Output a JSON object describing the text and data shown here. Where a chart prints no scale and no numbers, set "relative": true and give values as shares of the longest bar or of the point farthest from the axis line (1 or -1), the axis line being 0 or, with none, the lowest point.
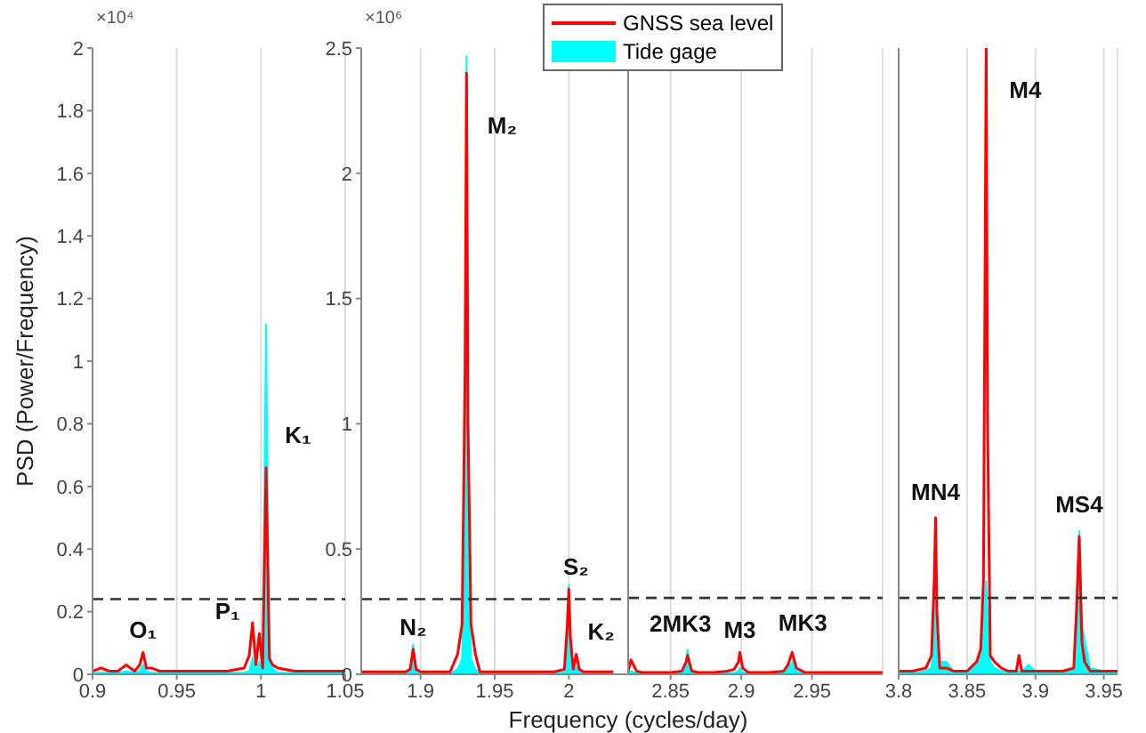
{
  "chart_data": [
    {
      "type": "line",
      "ylabel": "PSD (Power/Frequency)",
      "annotations": [
        "×10⁴",
        {
          "text": "O₁",
          "x": 0.93,
          "y": 0.07
        },
        {
          "text": "P₁",
          "x": 0.995,
          "y": 0.165
        },
        {
          "text": "K₁",
          "x": 1.003,
          "y": 0.66
        }
      ],
      "x": [
        0.9,
        0.905,
        0.91,
        0.915,
        0.92,
        0.925,
        0.928,
        0.93,
        0.932,
        0.935,
        0.94,
        0.95,
        0.96,
        0.97,
        0.98,
        0.99,
        0.993,
        0.995,
        0.997,
        0.999,
        1.001,
        1.003,
        1.005,
        1.007,
        1.01,
        1.02,
        1.03,
        1.04,
        1.05
      ],
      "series": [
        {
          "type": "line",
          "color": "#ff0000",
          "values": [
            0.01,
            0.02,
            0.01,
            0.01,
            0.03,
            0.01,
            0.03,
            0.07,
            0.02,
            0.02,
            0.01,
            0.01,
            0.01,
            0.01,
            0.01,
            0.02,
            0.06,
            0.165,
            0.03,
            0.13,
            0.02,
            0.66,
            0.05,
            0.03,
            0.02,
            0.01,
            0.01,
            0.01,
            0.01
          ]
        },
        {
          "type": "area",
          "color": "#00ffff",
          "values": [
            0.005,
            0.005,
            0.005,
            0.005,
            0.01,
            0.005,
            0.01,
            0.03,
            0.01,
            0.005,
            0.005,
            0.005,
            0.005,
            0.005,
            0.005,
            0.005,
            0.01,
            0.05,
            0.01,
            0.04,
            0.02,
            1.12,
            0.06,
            0.02,
            0.005,
            0.005,
            0.005,
            0.005,
            0.005
          ]
        }
      ],
      "xlim": [
        0.9,
        1.05
      ],
      "xticks": [
        0.9,
        0.95,
        1,
        1.05
      ],
      "ylim": [
        0,
        2
      ],
      "yticks": [
        0,
        0.2,
        0.4,
        0.6,
        0.8,
        1,
        1.2,
        1.4,
        1.6,
        1.8,
        2
      ],
      "grid": "x",
      "ref_lines": [
        {
          "axis": "y",
          "value": 0.24,
          "color": "#333333",
          "line_style": "dashed"
        }
      ]
    },
    {
      "type": "line",
      "xlabel": "Frequency (cycles/day)",
      "annotations": [
        "×10⁶",
        {
          "text": "M₂",
          "x": 1.931,
          "y": 2.4
        },
        {
          "text": "N₂",
          "x": 1.895,
          "y": 0.1
        },
        {
          "text": "S₂",
          "x": 2.0,
          "y": 0.34
        },
        {
          "text": "K₂",
          "x": 2.005,
          "y": 0.08
        }
      ],
      "x": [
        1.86,
        1.87,
        1.88,
        1.89,
        1.893,
        1.895,
        1.897,
        1.9,
        1.91,
        1.92,
        1.925,
        1.928,
        1.93,
        1.931,
        1.932,
        1.934,
        1.937,
        1.94,
        1.95,
        1.96,
        1.97,
        1.98,
        1.99,
        1.997,
        1.999,
        2.0,
        2.001,
        2.003,
        2.005,
        2.007,
        2.01,
        2.02,
        2.03
      ],
      "series": [
        {
          "type": "line",
          "color": "#ff0000",
          "values": [
            0.01,
            0.01,
            0.01,
            0.01,
            0.02,
            0.1,
            0.02,
            0.01,
            0.01,
            0.01,
            0.08,
            0.2,
            1.2,
            2.4,
            1.0,
            0.2,
            0.08,
            0.01,
            0.01,
            0.01,
            0.01,
            0.01,
            0.01,
            0.02,
            0.2,
            0.34,
            0.15,
            0.02,
            0.08,
            0.02,
            0.01,
            0.01,
            0.01
          ]
        },
        {
          "type": "area",
          "color": "#00ffff",
          "values": [
            0.005,
            0.005,
            0.005,
            0.005,
            0.01,
            0.12,
            0.01,
            0.005,
            0.005,
            0.005,
            0.02,
            0.06,
            0.8,
            2.47,
            0.9,
            0.06,
            0.02,
            0.005,
            0.005,
            0.005,
            0.005,
            0.005,
            0.005,
            0.01,
            0.15,
            0.36,
            0.1,
            0.01,
            0.03,
            0.01,
            0.005,
            0.005,
            0.005
          ]
        }
      ],
      "xlim": [
        1.86,
        2.04
      ],
      "xticks": [
        1.9,
        1.95,
        2
      ],
      "ylim": [
        0,
        2.5
      ],
      "yticks": [
        0,
        0.5,
        1,
        1.5,
        2,
        2.5
      ],
      "grid": "x",
      "ref_lines": [
        {
          "axis": "y",
          "value": 0.3,
          "color": "#333333",
          "line_style": "dashed"
        }
      ]
    },
    {
      "type": "line",
      "relative": true,
      "tick_labels": "x",
      "legend": "top left",
      "annotations": [
        {
          "text": "2MK3",
          "x": 2.862,
          "y": 1
        },
        {
          "text": "M3",
          "x": 2.899,
          "y": 0.875
        },
        {
          "text": "MK3",
          "x": 2.936,
          "y": 0.875
        }
      ],
      "x": [
        2.82,
        2.822,
        2.826,
        2.83,
        2.84,
        2.85,
        2.858,
        2.861,
        2.862,
        2.865,
        2.87,
        2.88,
        2.89,
        2.895,
        2.898,
        2.899,
        2.901,
        2.905,
        2.91,
        2.92,
        2.93,
        2.933,
        2.936,
        2.939,
        2.945,
        2.96,
        2.97,
        2.98,
        2.99,
        3.0
      ],
      "series": [
        {
          "name": "GNSS sea level",
          "type": "line",
          "color": "#ff0000",
          "values": [
            0.125,
            0.575,
            0.125,
            0.075,
            0.075,
            0.075,
            0.125,
            0.5,
            0.75,
            0.125,
            0.075,
            0.075,
            0.125,
            0.2,
            0.5,
            0.875,
            0.25,
            0.075,
            0.075,
            0.075,
            0.125,
            0.375,
            0.875,
            0.25,
            0.075,
            0.075,
            0.075,
            0.075,
            0.075,
            0.075
          ]
        },
        {
          "name": "Tide gage",
          "type": "area",
          "color": "#00ffff",
          "values": [
            0.05,
            0.125,
            0.05,
            0.05,
            0.05,
            0.05,
            0.075,
            0.5,
            1,
            0.075,
            0.05,
            0.05,
            0.05,
            0.05,
            0.125,
            0.25,
            0.075,
            0.05,
            0.05,
            0.05,
            0.075,
            0.25,
            0.5,
            0.125,
            0.05,
            0.05,
            0.05,
            0.05,
            0.05,
            0.05
          ]
        }
      ],
      "xlim": [
        2.82,
        3.0
      ],
      "xticks": [
        2.85,
        2.9,
        2.95
      ],
      "grid": "x",
      "ref_lines": [
        {
          "axis": "y",
          "value": 3.05,
          "color": "#333333",
          "line_style": "dashed"
        }
      ]
    },
    {
      "type": "line",
      "relative": true,
      "tick_labels": "x",
      "annotations": [
        {
          "text": "M4",
          "x": 3.864,
          "y": 1.0
        },
        {
          "text": "MN4",
          "x": 3.827,
          "y": 0.25
        },
        {
          "text": "MS4",
          "x": 3.932,
          "y": 0.23
        }
      ],
      "x": [
        3.8,
        3.81,
        3.82,
        3.824,
        3.826,
        3.827,
        3.828,
        3.83,
        3.835,
        3.84,
        3.85,
        3.857,
        3.86,
        3.862,
        3.864,
        3.865,
        3.867,
        3.87,
        3.875,
        3.88,
        3.886,
        3.888,
        3.89,
        3.895,
        3.9,
        3.91,
        3.92,
        3.928,
        3.93,
        3.932,
        3.934,
        3.936,
        3.94,
        3.95,
        3.96
      ],
      "series": [
        {
          "type": "line",
          "color": "#ff0000",
          "values": [
            0.005,
            0.005,
            0.01,
            0.03,
            0.15,
            0.25,
            0.1,
            0.01,
            0.01,
            0.005,
            0.005,
            0.02,
            0.04,
            0.15,
            1.0,
            0.4,
            0.03,
            0.02,
            0.01,
            0.005,
            0.005,
            0.03,
            0.005,
            0.005,
            0.005,
            0.005,
            0.005,
            0.01,
            0.1,
            0.22,
            0.05,
            0.02,
            0.005,
            0.005,
            0.005
          ]
        },
        {
          "type": "area",
          "color": "#00ffff",
          "values": [
            0.002,
            0.002,
            0.005,
            0.01,
            0.08,
            0.2,
            0.05,
            0.02,
            0.02,
            0.005,
            0.005,
            0.02,
            0.03,
            0.1,
            0.15,
            0.1,
            0.02,
            0.01,
            0.005,
            0.005,
            0.005,
            0.005,
            0.005,
            0.015,
            0.005,
            0.005,
            0.005,
            0.01,
            0.1,
            0.23,
            0.08,
            0.055,
            0.01,
            0.005,
            0.005
          ]
        }
      ],
      "xlim": [
        3.8,
        3.96
      ],
      "xticks": [
        3.8,
        3.85,
        3.9,
        3.95
      ],
      "grid": "x",
      "ref_lines": [
        {
          "axis": "y",
          "value": 0.122,
          "color": "#333333",
          "line_style": "dashed"
        }
      ]
    }
  ]
}
